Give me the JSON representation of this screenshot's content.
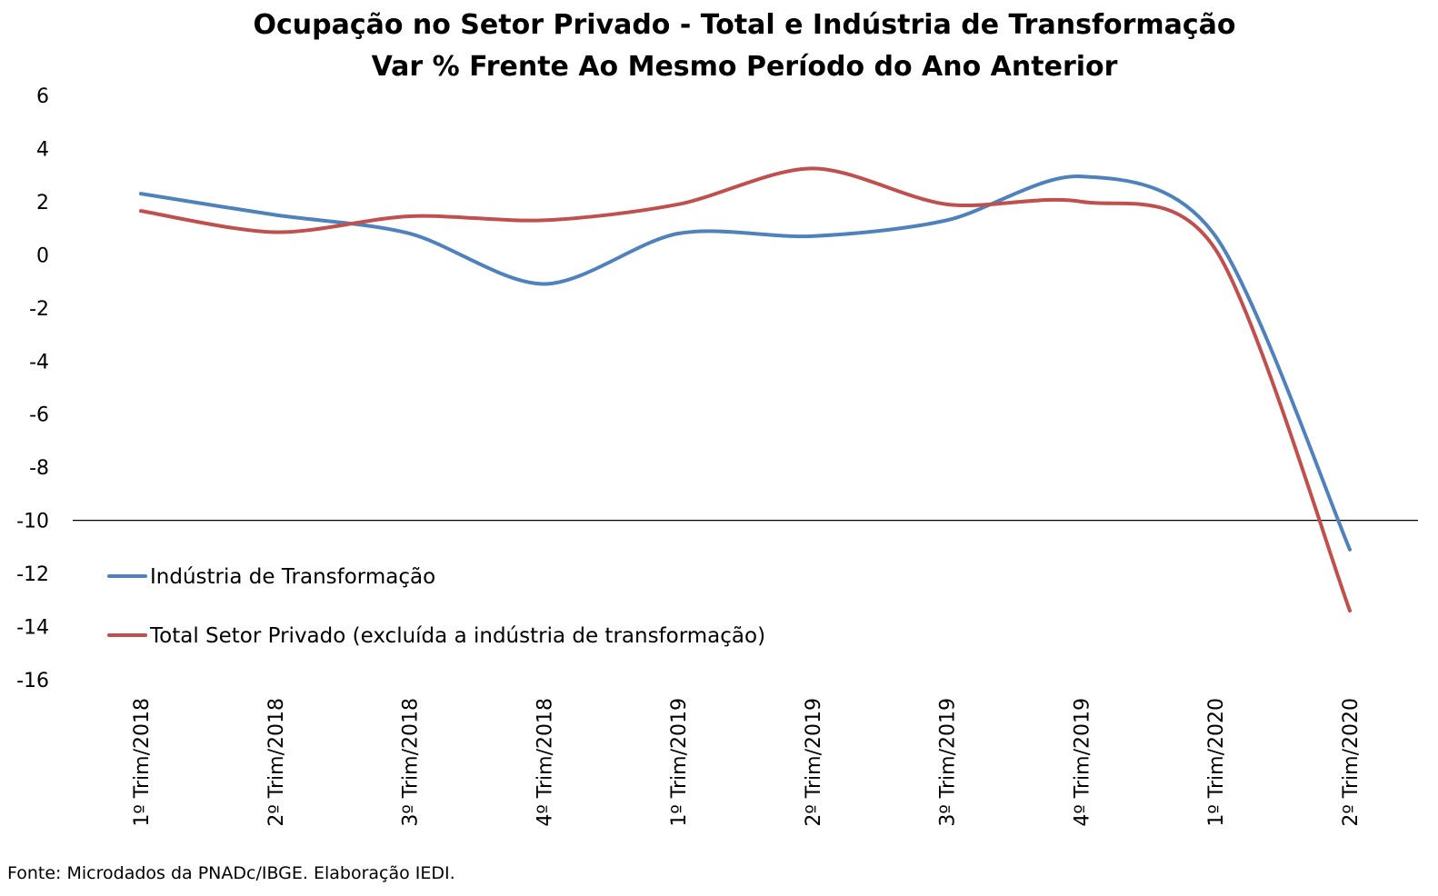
{
  "chart_data": {
    "type": "line",
    "title": "Ocupação no Setor Privado - Total e Indústria de Transformação",
    "subtitle": "Var % Frente Ao Mesmo Período do Ano Anterior",
    "xlabel": "",
    "ylabel": "",
    "categories": [
      "1º Trim/2018",
      "2º Trim/2018",
      "3º Trim/2018",
      "4º Trim/2018",
      "1º Trim/2019",
      "2º Trim/2019",
      "3º Trim/2019",
      "4º Trim/2019",
      "1º Trim/2020",
      "2º Trim/2020"
    ],
    "ylim": [
      -16,
      6
    ],
    "yticks": [
      6,
      4,
      2,
      0,
      -2,
      -4,
      -6,
      -8,
      -10,
      -12,
      -14,
      -16
    ],
    "reference_line": -10,
    "grid": false,
    "smoothed": true,
    "legend_position": "bottom-left",
    "series": [
      {
        "name": "Indústria de Transformação",
        "color": "#4F81BD",
        "values": [
          2.3,
          1.5,
          0.8,
          -1.1,
          0.8,
          0.7,
          1.3,
          2.95,
          0.7,
          -11.1
        ]
      },
      {
        "name": "Total Setor Privado (excluída a indústria de transformação)",
        "color": "#C0504D",
        "values": [
          1.65,
          0.85,
          1.45,
          1.3,
          1.9,
          3.25,
          1.9,
          2.0,
          0.2,
          -13.4
        ]
      }
    ],
    "source": "Fonte: Microdados da PNADc/IBGE. Elaboração IEDI."
  }
}
